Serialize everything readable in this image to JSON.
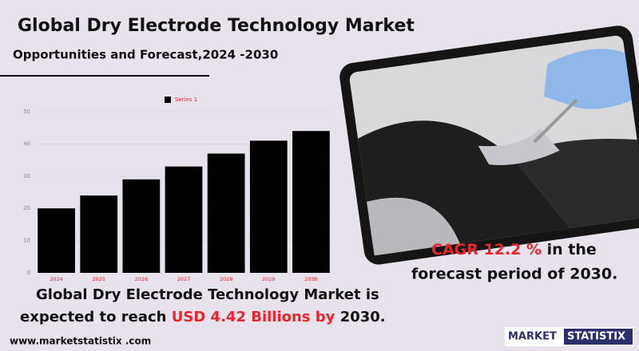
{
  "header": {
    "title": "Global Dry Electrode Technology Market",
    "subtitle": "Opportunities and Forecast,2024 -2030"
  },
  "cagr": {
    "highlight": "CAGR 12.2 %",
    "rest_line1": " in the",
    "line2": "forecast period of 2030."
  },
  "summary": {
    "line1": "Global Dry Electrode Technology Market is",
    "line2_start": "expected to reach ",
    "line2_highlight": "USD 4.42 Billions by",
    "line2_end": " 2030."
  },
  "footer": {
    "website": "www.marketstatistix .com",
    "logo_part1": "MARKET",
    "logo_part2": "STATISTIX"
  },
  "chart_data": {
    "type": "bar",
    "categories": [
      "2024",
      "2025",
      "2026",
      "2027",
      "2028",
      "2029",
      "2030"
    ],
    "series": [
      {
        "name": "Series 1",
        "color": "#000000",
        "values": [
          20,
          24,
          29,
          33,
          37,
          41,
          44
        ]
      }
    ],
    "ylim": [
      0,
      50
    ],
    "yticks": [
      0,
      10,
      20,
      30,
      40,
      50
    ],
    "grid": true
  }
}
